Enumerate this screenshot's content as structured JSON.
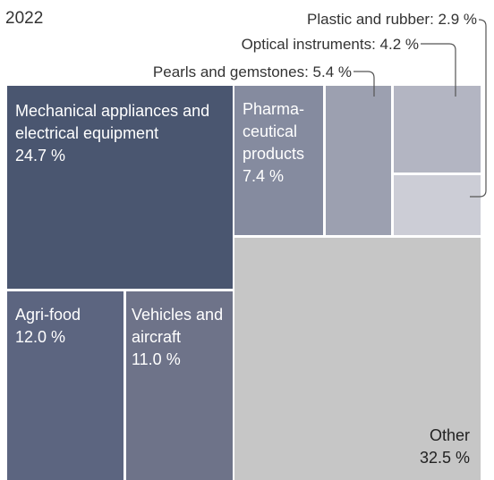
{
  "chart_data": {
    "type": "treemap",
    "title": "2022",
    "unit": "%",
    "items": [
      {
        "name": "Mechanical appliances and electrical equipment",
        "label_lines": [
          "Mechanical appliances and",
          "electrical equipment"
        ],
        "value": 24.7,
        "value_label": "24.7 %",
        "color": "#4a5670"
      },
      {
        "name": "Agri-food",
        "label_lines": [
          "Agri-food"
        ],
        "value": 12.0,
        "value_label": "12.0 %",
        "color": "#5c6580"
      },
      {
        "name": "Vehicles and aircraft",
        "label_lines": [
          "Vehicles and",
          "aircraft"
        ],
        "value": 11.0,
        "value_label": "11.0 %",
        "color": "#6e7389"
      },
      {
        "name": "Pharmaceutical products",
        "label_lines": [
          "Pharma-",
          "ceutical",
          "products"
        ],
        "value": 7.4,
        "value_label": "7.4 %",
        "color": "#858b9f"
      },
      {
        "name": "Pearls and gemstones",
        "label_lines": [],
        "value": 5.4,
        "value_label": "5.4 %",
        "callout": "Pearls and gemstones: 5.4 %",
        "color": "#9ca0b0"
      },
      {
        "name": "Optical instruments",
        "label_lines": [],
        "value": 4.2,
        "value_label": "4.2 %",
        "callout": "Optical instruments: 4.2 %",
        "color": "#b3b5c2"
      },
      {
        "name": "Plastic and rubber",
        "label_lines": [],
        "value": 2.9,
        "value_label": "2.9 %",
        "callout": "Plastic and rubber: 2.9 %",
        "color": "#cccdd6"
      },
      {
        "name": "Other",
        "label_lines": [
          "Other"
        ],
        "value": 32.5,
        "value_label": "32.5 %",
        "color": "#c6c6c6"
      }
    ]
  }
}
